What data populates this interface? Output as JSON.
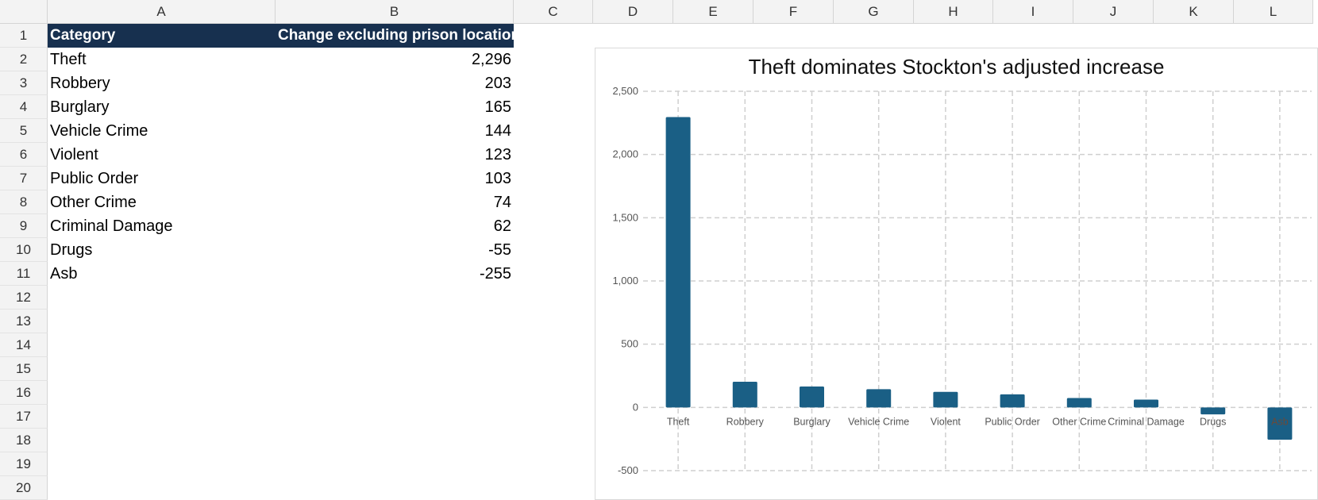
{
  "columns": [
    "A",
    "B",
    "C",
    "D",
    "E",
    "F",
    "G",
    "H",
    "I",
    "J",
    "K",
    "L"
  ],
  "rows": [
    "1",
    "2",
    "3",
    "4",
    "5",
    "6",
    "7",
    "8",
    "9",
    "10",
    "11",
    "12",
    "13",
    "14",
    "15",
    "16",
    "17",
    "18",
    "19",
    "20"
  ],
  "table": {
    "header": [
      "Category",
      "Change excluding prison location"
    ],
    "rows": [
      [
        "Theft",
        "2,296"
      ],
      [
        "Robbery",
        "203"
      ],
      [
        "Burglary",
        "165"
      ],
      [
        "Vehicle Crime",
        "144"
      ],
      [
        "Violent",
        "123"
      ],
      [
        "Public Order",
        "103"
      ],
      [
        "Other Crime",
        "74"
      ],
      [
        "Criminal Damage",
        "62"
      ],
      [
        "Drugs",
        "-55"
      ],
      [
        "Asb",
        "-255"
      ]
    ]
  },
  "chart_data": {
    "type": "bar",
    "title": "Theft dominates Stockton's adjusted increase",
    "categories": [
      "Theft",
      "Robbery",
      "Burglary",
      "Vehicle Crime",
      "Violent",
      "Public Order",
      "Other Crime",
      "Criminal Damage",
      "Drugs",
      "Asb"
    ],
    "values": [
      2296,
      203,
      165,
      144,
      123,
      103,
      74,
      62,
      -55,
      -255
    ],
    "ylim": [
      -500,
      2500
    ],
    "yticks": [
      "-500",
      "0",
      "500",
      "1,000",
      "1,500",
      "2,000",
      "2,500"
    ],
    "ytick_values": [
      -500,
      0,
      500,
      1000,
      1500,
      2000,
      2500
    ],
    "xlabel": "",
    "ylabel": "",
    "grid": true,
    "bar_color": "#1a5f85"
  }
}
